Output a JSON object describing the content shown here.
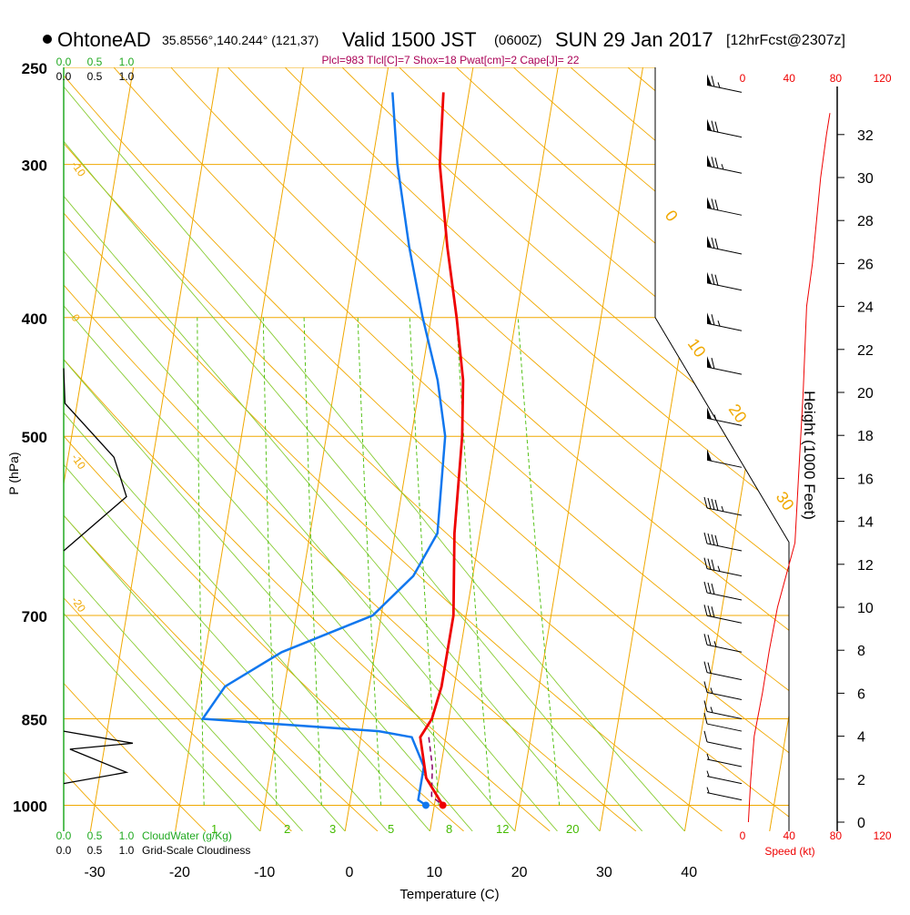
{
  "header": {
    "title": "OhtoneAD",
    "coords": "35.8556°,140.244° (121,37)",
    "valid": "Valid 1500 JST",
    "zulu": "(0600Z)",
    "date": "SUN 29 Jan 2017",
    "forecast": "[12hrFcst@2307z]"
  },
  "indices": "Plcl=983 Tlcl[C]=7 Shox=18 Pwat[cm]=2 Cape[J]= 22",
  "colors": {
    "isotherm": "#f0a800",
    "mixing_ratio": "#44bb00",
    "dry_adiabat": "#f0a800",
    "moist_adiabat": "#88cc33",
    "temperature": "#ee0000",
    "dewpoint": "#1177ee",
    "parcel": "#880066",
    "cloud_water": "#22aa22",
    "speed": "#ee0000",
    "header_indices": "#aa0055"
  },
  "chart_data": {
    "type": "line",
    "xlabel": "Temperature (C)",
    "ylabel": "P (hPa)",
    "x_ticks": [
      -30,
      -20,
      -10,
      0,
      10,
      20,
      30,
      40
    ],
    "pressure_ticks": [
      250,
      300,
      400,
      500,
      700,
      850,
      1000
    ],
    "pressure_scale": "log",
    "isotherm_labels": [
      "-10",
      "0",
      "-10",
      "-20",
      "0",
      "10",
      "20",
      "30"
    ],
    "mixing_ratio_labels": [
      "1",
      "2",
      "3",
      "5",
      "8",
      "12",
      "20"
    ],
    "series": [
      {
        "name": "temperature",
        "points": [
          {
            "p": 262,
            "t": -3
          },
          {
            "p": 300,
            "t": -2
          },
          {
            "p": 350,
            "t": 0.5
          },
          {
            "p": 400,
            "t": 3
          },
          {
            "p": 450,
            "t": 5
          },
          {
            "p": 500,
            "t": 6
          },
          {
            "p": 600,
            "t": 7
          },
          {
            "p": 700,
            "t": 8.5
          },
          {
            "p": 800,
            "t": 8.5
          },
          {
            "p": 850,
            "t": 8
          },
          {
            "p": 880,
            "t": 7
          },
          {
            "p": 950,
            "t": 8.5
          },
          {
            "p": 1000,
            "t": 11
          }
        ]
      },
      {
        "name": "dewpoint",
        "points": [
          {
            "p": 262,
            "t": -9
          },
          {
            "p": 300,
            "t": -7
          },
          {
            "p": 350,
            "t": -4
          },
          {
            "p": 400,
            "t": -1
          },
          {
            "p": 450,
            "t": 2
          },
          {
            "p": 500,
            "t": 4
          },
          {
            "p": 600,
            "t": 5
          },
          {
            "p": 650,
            "t": 3
          },
          {
            "p": 700,
            "t": -1
          },
          {
            "p": 750,
            "t": -11
          },
          {
            "p": 800,
            "t": -17
          },
          {
            "p": 850,
            "t": -19
          },
          {
            "p": 870,
            "t": 2
          },
          {
            "p": 880,
            "t": 6
          },
          {
            "p": 930,
            "t": 8
          },
          {
            "p": 990,
            "t": 8
          },
          {
            "p": 1000,
            "t": 9
          }
        ]
      },
      {
        "name": "parcel",
        "points": [
          {
            "p": 880,
            "t": 8
          },
          {
            "p": 930,
            "t": 9
          },
          {
            "p": 983,
            "t": 9.5
          },
          {
            "p": 1000,
            "t": 11
          }
        ]
      }
    ],
    "height_axis": {
      "title": "Height (1000 Feet)",
      "ticks": [
        0,
        2,
        4,
        6,
        8,
        10,
        12,
        14,
        16,
        18,
        20,
        22,
        24,
        26,
        28,
        30,
        32
      ]
    },
    "speed_axis": {
      "label": "Speed (kt)",
      "ticks": [
        "0",
        "40",
        "80",
        "120"
      ],
      "profile": [
        {
          "h": 0,
          "s": 5
        },
        {
          "h": 2,
          "s": 7
        },
        {
          "h": 4,
          "s": 10
        },
        {
          "h": 6,
          "s": 17
        },
        {
          "h": 8,
          "s": 23
        },
        {
          "h": 10,
          "s": 30
        },
        {
          "h": 12,
          "s": 40
        },
        {
          "h": 13,
          "s": 45
        },
        {
          "h": 16,
          "s": 48
        },
        {
          "h": 20,
          "s": 52
        },
        {
          "h": 24,
          "s": 55
        },
        {
          "h": 26,
          "s": 60
        },
        {
          "h": 30,
          "s": 67
        },
        {
          "h": 32,
          "s": 72
        },
        {
          "h": 33,
          "s": 75
        }
      ]
    },
    "cloud_axis": {
      "cloud_water_ticks": [
        "0.0",
        "0.5",
        "1.0"
      ],
      "cloud_water_label": "CloudWater (g/Kg)",
      "cloudiness_ticks": [
        "0.0",
        "0.5",
        "1.0"
      ],
      "cloudiness_label": "Grid-Scale Cloudiness",
      "cloudiness_profile": [
        {
          "p": 440,
          "v": 0.0
        },
        {
          "p": 470,
          "v": 0.02
        },
        {
          "p": 520,
          "v": 0.8
        },
        {
          "p": 560,
          "v": 1.0
        },
        {
          "p": 620,
          "v": 0.0
        }
      ],
      "cloudiness_low": [
        {
          "p": 870,
          "v": 0.0
        },
        {
          "p": 890,
          "v": 1.1
        },
        {
          "p": 900,
          "v": 0.1
        },
        {
          "p": 940,
          "v": 1.0
        },
        {
          "p": 960,
          "v": 0.0
        }
      ]
    },
    "wind_barbs": [
      {
        "p": 262,
        "kt": 65
      },
      {
        "p": 285,
        "kt": 70
      },
      {
        "p": 305,
        "kt": 75
      },
      {
        "p": 330,
        "kt": 70
      },
      {
        "p": 355,
        "kt": 70
      },
      {
        "p": 380,
        "kt": 70
      },
      {
        "p": 410,
        "kt": 65
      },
      {
        "p": 445,
        "kt": 60
      },
      {
        "p": 490,
        "kt": 55
      },
      {
        "p": 530,
        "kt": 50
      },
      {
        "p": 580,
        "kt": 45
      },
      {
        "p": 620,
        "kt": 40
      },
      {
        "p": 650,
        "kt": 35
      },
      {
        "p": 680,
        "kt": 30
      },
      {
        "p": 710,
        "kt": 30
      },
      {
        "p": 750,
        "kt": 25
      },
      {
        "p": 790,
        "kt": 20
      },
      {
        "p": 820,
        "kt": 15
      },
      {
        "p": 850,
        "kt": 15
      },
      {
        "p": 870,
        "kt": 10
      },
      {
        "p": 900,
        "kt": 10
      },
      {
        "p": 930,
        "kt": 5
      },
      {
        "p": 960,
        "kt": 5
      },
      {
        "p": 990,
        "kt": 5
      }
    ]
  }
}
